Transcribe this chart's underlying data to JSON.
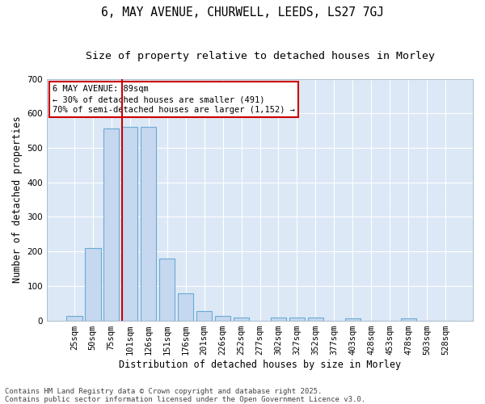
{
  "title": "6, MAY AVENUE, CHURWELL, LEEDS, LS27 7GJ",
  "subtitle": "Size of property relative to detached houses in Morley",
  "xlabel": "Distribution of detached houses by size in Morley",
  "ylabel": "Number of detached properties",
  "categories": [
    "25sqm",
    "50sqm",
    "75sqm",
    "101sqm",
    "126sqm",
    "151sqm",
    "176sqm",
    "201sqm",
    "226sqm",
    "252sqm",
    "277sqm",
    "302sqm",
    "327sqm",
    "352sqm",
    "377sqm",
    "403sqm",
    "428sqm",
    "453sqm",
    "478sqm",
    "503sqm",
    "528sqm"
  ],
  "values": [
    12,
    210,
    555,
    560,
    560,
    180,
    78,
    28,
    12,
    9,
    0,
    9,
    9,
    8,
    0,
    5,
    0,
    0,
    5,
    0,
    0
  ],
  "bar_color": "#c5d8f0",
  "bar_edge_color": "#6aaad4",
  "bg_color": "#dce8f5",
  "fig_color": "#ffffff",
  "vline_color": "#cc0000",
  "vline_x_index": 2.57,
  "annotation_line1": "6 MAY AVENUE: 89sqm",
  "annotation_line2": "← 30% of detached houses are smaller (491)",
  "annotation_line3": "70% of semi-detached houses are larger (1,152) →",
  "annotation_box_color": "#cc0000",
  "ylim": [
    0,
    700
  ],
  "yticks": [
    0,
    100,
    200,
    300,
    400,
    500,
    600,
    700
  ],
  "footer_line1": "Contains HM Land Registry data © Crown copyright and database right 2025.",
  "footer_line2": "Contains public sector information licensed under the Open Government Licence v3.0.",
  "title_fontsize": 10.5,
  "subtitle_fontsize": 9.5,
  "axis_label_fontsize": 8.5,
  "tick_fontsize": 7.5,
  "annotation_fontsize": 7.5,
  "footer_fontsize": 6.5
}
